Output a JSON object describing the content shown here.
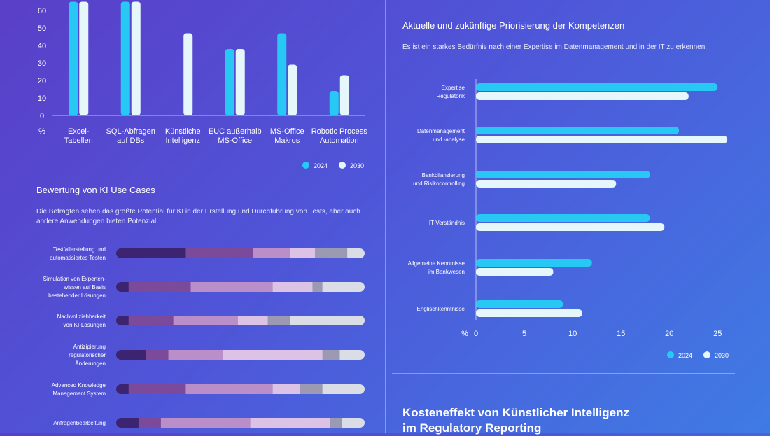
{
  "colors": {
    "c2024": "#28c8f5",
    "c2030": "#e6f7fb"
  },
  "chart_data": [
    {
      "type": "bar",
      "categories": [
        "Excel-\nTabellen",
        "SQL-Abfragen\nauf DBs",
        "Künstliche\nIntelligenz",
        "EUC außerhalb\nMS-Office",
        "MS-Office\nMakros",
        "Robotic Process\nAutomation"
      ],
      "series": [
        {
          "name": "2024",
          "values": [
            65,
            65,
            0,
            38,
            47,
            14
          ]
        },
        {
          "name": "2030",
          "values": [
            65,
            65,
            47,
            38,
            29,
            23
          ]
        }
      ],
      "yticks": [
        "0",
        "10",
        "20",
        "30",
        "40",
        "50",
        "60"
      ],
      "ylim": [
        0,
        66
      ],
      "unit": "%",
      "legend": "bottom-right"
    },
    {
      "type": "bar",
      "orientation": "horizontal",
      "title": "Aktuelle und zukünftige Priorisierung der Kompetenzen",
      "subtitle": "Es ist ein starkes Bedürfnis nach einer Expertise im Datenmanagement und in der IT zu erkennen.",
      "categories": [
        "Expertise\nRegulatorik",
        "Datenmanagement\nund -analyse",
        "Bankbilanzierung\nund Risikocontrolling",
        "IT-Verständnis",
        "Allgemeine Kenntnisse\nim Bankwesen",
        "Englischkenntnisse"
      ],
      "series": [
        {
          "name": "2024",
          "values": [
            25,
            21,
            18,
            18,
            12,
            9
          ]
        },
        {
          "name": "2030",
          "values": [
            22,
            26,
            14.5,
            19.5,
            8,
            11
          ]
        }
      ],
      "xticks": [
        "0",
        "5",
        "10",
        "15",
        "20",
        "25"
      ],
      "xlim": [
        0,
        26.5
      ],
      "unit": "%",
      "legend": "bottom-right"
    },
    {
      "type": "bar",
      "orientation": "horizontal-stacked",
      "title": "Bewertung von KI Use Cases",
      "subtitle": "Die Befragten sehen das größte Potential für KI in der Erstellung und Durchführung von Tests, aber auch andere Anwendungen bieten Potenzial.",
      "categories": [
        "Testfallerstellung und\nautomatisiertes Testen",
        "Simulation von Experten-\nwissen auf Basis\nbestehender Lösungen",
        "Nachvollziehbarkeit\nvon KI-Lösungen",
        "Antizipierung\nregulatorischer\nÄnderungen",
        "Advanced Knowledge\nManagement System",
        "Anfragenbearbeitung"
      ],
      "segment_colors": [
        "#3d2470",
        "#7c4a9a",
        "#b98ec9",
        "#dcc3e6",
        "#9c9ab2",
        "#dadde6"
      ],
      "rows": [
        [
          28,
          27,
          15,
          10,
          13,
          7
        ],
        [
          5,
          25,
          33,
          16,
          4,
          17
        ],
        [
          5,
          18,
          26,
          12,
          9,
          30
        ],
        [
          12,
          9,
          22,
          40,
          7,
          10
        ],
        [
          5,
          23,
          35,
          11,
          9,
          17
        ],
        [
          9,
          9,
          36,
          32,
          5,
          9
        ]
      ]
    }
  ],
  "legend": {
    "label_2024": "2024",
    "label_2030": "2030"
  },
  "bottom_heading": {
    "line1": "Kosteneffekt von Künstlicher Intelligenz",
    "line2": "im Regulatory Reporting"
  }
}
